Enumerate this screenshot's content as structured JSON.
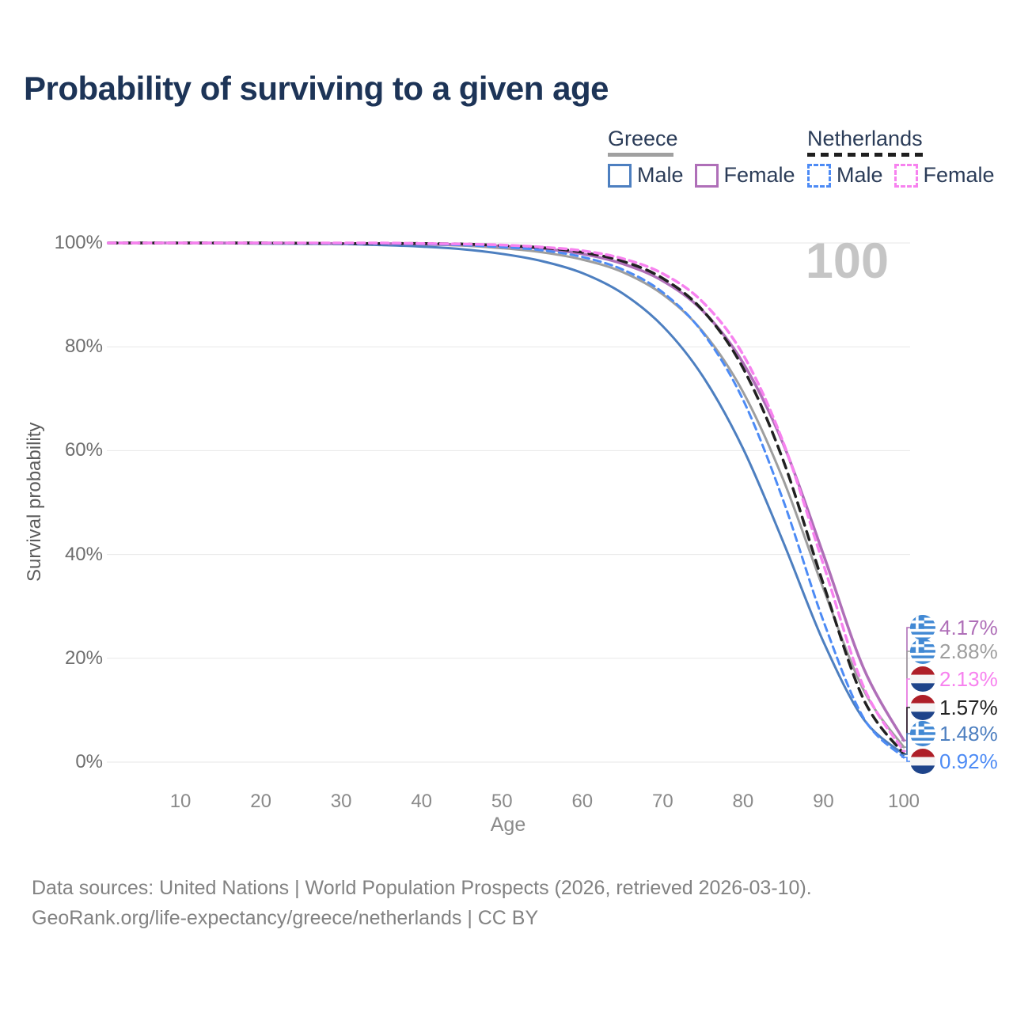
{
  "title": "Probability of surviving to a given age",
  "annotation": {
    "hover_age": "100"
  },
  "legend": {
    "position": "top-right",
    "groups": [
      {
        "label": "Greece",
        "line_style": "solid",
        "rule_color": "#a0a0a0",
        "items": [
          {
            "label": "Male"
          },
          {
            "label": "Female"
          }
        ]
      },
      {
        "label": "Netherlands",
        "line_style": "dashed",
        "rule_color": "#1f1f1f",
        "items": [
          {
            "label": "Male"
          },
          {
            "label": "Female"
          }
        ]
      }
    ]
  },
  "axes": {
    "y": {
      "label": "Survival probability",
      "ticks": [
        "0%",
        "20%",
        "40%",
        "60%",
        "80%",
        "100%"
      ]
    },
    "x": {
      "label": "Age",
      "ticks": [
        "10",
        "20",
        "30",
        "40",
        "50",
        "60",
        "70",
        "80",
        "90",
        "100"
      ]
    }
  },
  "footer": {
    "line1": "Data sources: United Nations | World Population Prospects (2026, retrieved 2026-03-10).",
    "line2": "GeoRank.org/life-expectancy/greece/netherlands | CC BY"
  },
  "chart_data": {
    "type": "line",
    "title": "Probability of surviving to a given age",
    "xlabel": "Age",
    "ylabel": "Survival probability",
    "xlim": [
      0,
      100
    ],
    "ylim": [
      0,
      100
    ],
    "grid": true,
    "x": [
      1,
      10,
      20,
      30,
      35,
      40,
      45,
      50,
      55,
      60,
      65,
      70,
      75,
      80,
      85,
      90,
      95,
      100
    ],
    "series": [
      {
        "name": "Greece Both sexes",
        "country": "Greece",
        "sex": "both",
        "line": "solid",
        "color": "#9e9e9e",
        "width": 3,
        "end_value": 2.88,
        "values": [
          100,
          100,
          99.9,
          99.9,
          99.8,
          99.7,
          99.5,
          99.0,
          98.2,
          96.8,
          94.4,
          90.1,
          82.9,
          71.3,
          54.4,
          33.4,
          13.9,
          2.88
        ]
      },
      {
        "name": "Greece Male",
        "country": "Greece",
        "sex": "male",
        "line": "solid",
        "color": "#4d7fc0",
        "width": 3,
        "end_value": 1.48,
        "values": [
          100,
          100,
          99.9,
          99.8,
          99.6,
          99.3,
          98.8,
          97.9,
          96.5,
          94.2,
          90.3,
          84.0,
          74.3,
          60.4,
          42.4,
          23.2,
          8.3,
          1.48
        ]
      },
      {
        "name": "Greece Female",
        "country": "Greece",
        "sex": "female",
        "line": "solid",
        "color": "#af6fb8",
        "width": 3.5,
        "end_value": 4.17,
        "values": [
          100,
          100,
          100,
          99.9,
          99.9,
          99.8,
          99.7,
          99.4,
          98.9,
          97.9,
          96.0,
          92.7,
          86.9,
          76.9,
          61.3,
          40.0,
          18.1,
          4.17
        ]
      },
      {
        "name": "Netherlands Both sexes",
        "country": "Netherlands",
        "sex": "both",
        "line": "dashed",
        "color": "#212121",
        "width": 3.5,
        "end_value": 1.57,
        "values": [
          100,
          100,
          100,
          99.9,
          99.9,
          99.9,
          99.8,
          99.5,
          99.1,
          98.2,
          96.5,
          93.2,
          87.0,
          75.9,
          58.1,
          34.3,
          12.1,
          1.57
        ]
      },
      {
        "name": "Netherlands Male",
        "country": "Netherlands",
        "sex": "male",
        "line": "dashed",
        "color": "#4d8bf5",
        "width": 3,
        "end_value": 0.92,
        "values": [
          100,
          100,
          100,
          99.9,
          99.9,
          99.8,
          99.6,
          99.2,
          98.6,
          97.3,
          94.9,
          90.5,
          82.7,
          69.8,
          50.4,
          27.2,
          8.5,
          0.92
        ]
      },
      {
        "name": "Netherlands Female",
        "country": "Netherlands",
        "sex": "female",
        "line": "dashed",
        "color": "#f782ef",
        "width": 3.5,
        "end_value": 2.13,
        "values": [
          100,
          100,
          100,
          100,
          100,
          99.9,
          99.8,
          99.6,
          99.2,
          98.5,
          97.0,
          94.1,
          88.6,
          78.5,
          61.6,
          38.1,
          14.5,
          2.13
        ]
      }
    ],
    "end_labels": [
      {
        "value": "4.17%",
        "series": "Greece Female",
        "country": "Greece"
      },
      {
        "value": "2.88%",
        "series": "Greece Both sexes",
        "country": "Greece"
      },
      {
        "value": "2.13%",
        "series": "Netherlands Female",
        "country": "Netherlands"
      },
      {
        "value": "1.57%",
        "series": "Netherlands Both sexes",
        "country": "Netherlands"
      },
      {
        "value": "1.48%",
        "series": "Greece Male",
        "country": "Greece"
      },
      {
        "value": "0.92%",
        "series": "Netherlands Male",
        "country": "Netherlands"
      }
    ]
  }
}
